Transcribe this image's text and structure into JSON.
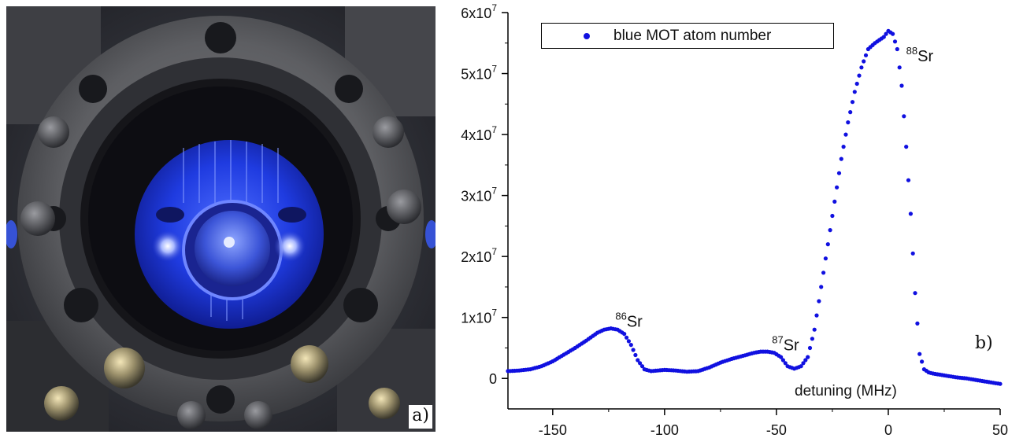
{
  "photo_panel": {
    "label": "a)"
  },
  "chart_panel": {
    "label": "b)"
  },
  "chart_data": {
    "type": "scatter",
    "title": "",
    "xlabel": "detuning (MHz)",
    "ylabel": "",
    "xlim": [
      -170,
      50
    ],
    "ylim": [
      -5000000,
      60000000
    ],
    "x_ticks": [
      "-150",
      "-100",
      "-50",
      "0",
      "50"
    ],
    "x_tick_values": [
      -150,
      -100,
      -50,
      0,
      50
    ],
    "y_ticks": [
      {
        "value": 0,
        "mantissa": "0",
        "exponent": ""
      },
      {
        "value": 10000000,
        "mantissa": "1x10",
        "exponent": "7"
      },
      {
        "value": 20000000,
        "mantissa": "2x10",
        "exponent": "7"
      },
      {
        "value": 30000000,
        "mantissa": "3x10",
        "exponent": "7"
      },
      {
        "value": 40000000,
        "mantissa": "4x10",
        "exponent": "7"
      },
      {
        "value": 50000000,
        "mantissa": "5x10",
        "exponent": "7"
      },
      {
        "value": 60000000,
        "mantissa": "6x10",
        "exponent": "7"
      }
    ],
    "grid": false,
    "legend_position": "top-left",
    "series": [
      {
        "name": "blue MOT atom number",
        "color": "#1010e0",
        "x": [
          -170,
          -165,
          -160,
          -155,
          -150,
          -145,
          -140,
          -135,
          -130,
          -127,
          -124,
          -121,
          -118,
          -115,
          -112,
          -109,
          -106,
          -103,
          -100,
          -95,
          -90,
          -85,
          -80,
          -75,
          -70,
          -65,
          -60,
          -57,
          -54,
          -51,
          -48,
          -45,
          -42,
          -39,
          -36,
          -33,
          -30,
          -27,
          -24,
          -21,
          -18,
          -15,
          -12,
          -9,
          -6,
          -4,
          -2,
          0,
          2,
          4,
          6,
          8,
          10,
          12,
          14,
          16,
          18,
          20,
          25,
          30,
          35,
          40,
          45,
          50
        ],
        "y": [
          1200000,
          1300000,
          1500000,
          2000000,
          2800000,
          3900000,
          5000000,
          6200000,
          7500000,
          8000000,
          8200000,
          8000000,
          7300000,
          5500000,
          3000000,
          1500000,
          1200000,
          1300000,
          1400000,
          1300000,
          1100000,
          1200000,
          1800000,
          2600000,
          3200000,
          3700000,
          4200000,
          4400000,
          4400000,
          4200000,
          3500000,
          2000000,
          1600000,
          2000000,
          3500000,
          8000000,
          15000000,
          22000000,
          29000000,
          36000000,
          42000000,
          47000000,
          51000000,
          54000000,
          55000000,
          55500000,
          56000000,
          57000000,
          56500000,
          54000000,
          48000000,
          38000000,
          27000000,
          14000000,
          4000000,
          1500000,
          1000000,
          800000,
          500000,
          200000,
          0,
          -300000,
          -600000,
          -900000
        ]
      }
    ],
    "annotations": [
      {
        "sup": "86",
        "text": "Sr",
        "x": -122,
        "y": 8500000
      },
      {
        "sup": "87",
        "text": "Sr",
        "x": -52,
        "y": 4600000
      },
      {
        "sup": "88",
        "text": "Sr",
        "x": 8,
        "y": 52000000
      }
    ]
  }
}
